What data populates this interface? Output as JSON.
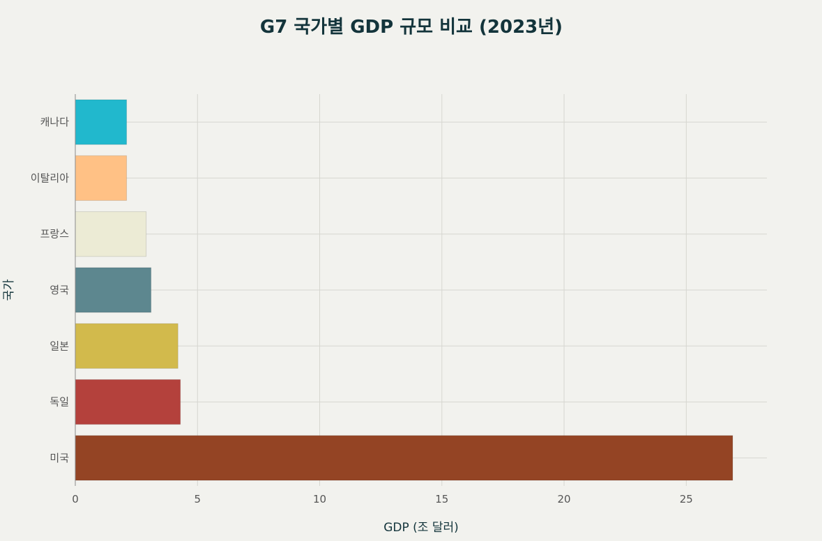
{
  "chart_data": {
    "type": "bar",
    "orientation": "horizontal",
    "title": "G7 국가별 GDP 규모 비교 (2023년)",
    "xlabel": "GDP (조 달러)",
    "ylabel": "국가",
    "xlim": [
      0,
      28.3
    ],
    "xticks": [
      0,
      5,
      10,
      15,
      20,
      25
    ],
    "grid": true,
    "legend": "none",
    "categories": [
      "캐나다",
      "이탈리아",
      "프랑스",
      "영국",
      "일본",
      "독일",
      "미국"
    ],
    "values": [
      2.1,
      2.1,
      2.9,
      3.1,
      4.2,
      4.3,
      26.9
    ],
    "colors": [
      "#21b8cd",
      "#ffc185",
      "#ecebd5",
      "#5d878f",
      "#d2ba4c",
      "#b4413c",
      "#944424"
    ]
  }
}
